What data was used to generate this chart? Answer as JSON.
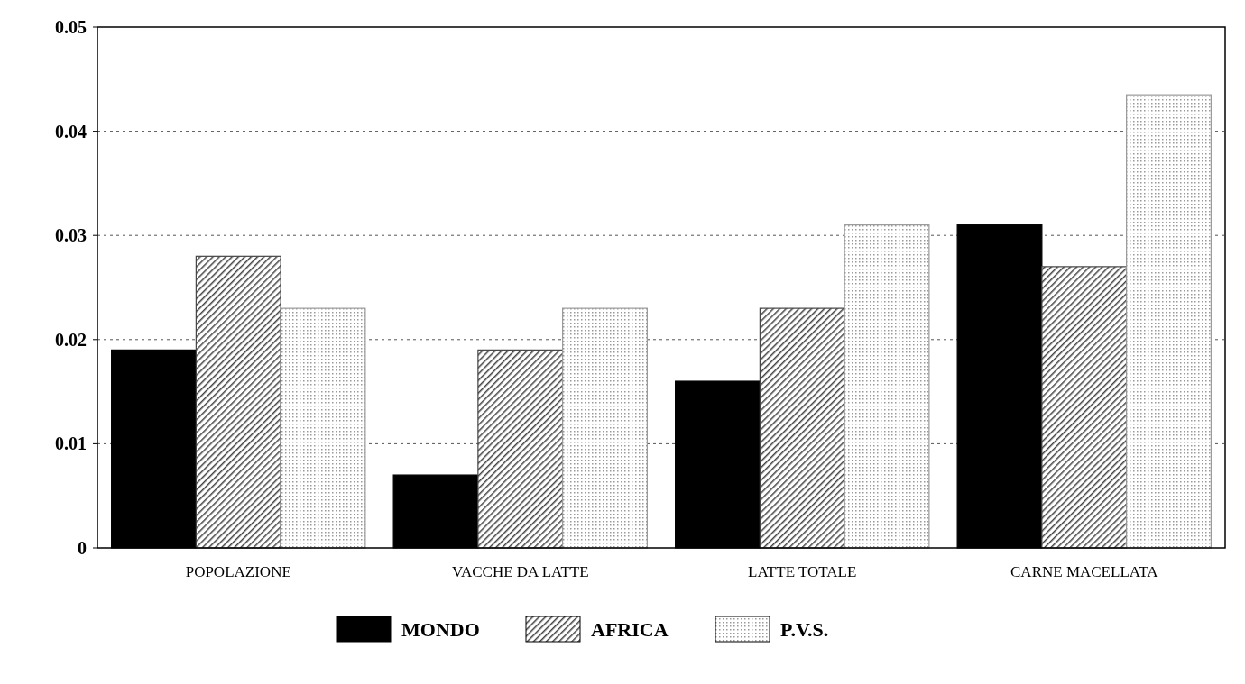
{
  "chart_data": {
    "type": "bar",
    "categories": [
      "POPOLAZIONE",
      "VACCHE DA LATTE",
      "LATTE TOTALE",
      "CARNE MACELLATA"
    ],
    "series": [
      {
        "name": "MONDO",
        "color": "#000000",
        "values": [
          0.019,
          0.007,
          0.016,
          0.031
        ]
      },
      {
        "name": "AFRICA",
        "color": "#444444",
        "values": [
          0.028,
          0.019,
          0.023,
          0.027
        ]
      },
      {
        "name": "P.V.S.",
        "color": "#999999",
        "values": [
          0.023,
          0.023,
          0.031,
          0.0435
        ]
      }
    ],
    "ylim": [
      0,
      0.05
    ],
    "yticks": [
      {
        "value": 0,
        "label": "0"
      },
      0.01,
      0.02,
      0.03,
      0.04,
      0.05
    ],
    "grid": "y",
    "legend": "bottom"
  }
}
